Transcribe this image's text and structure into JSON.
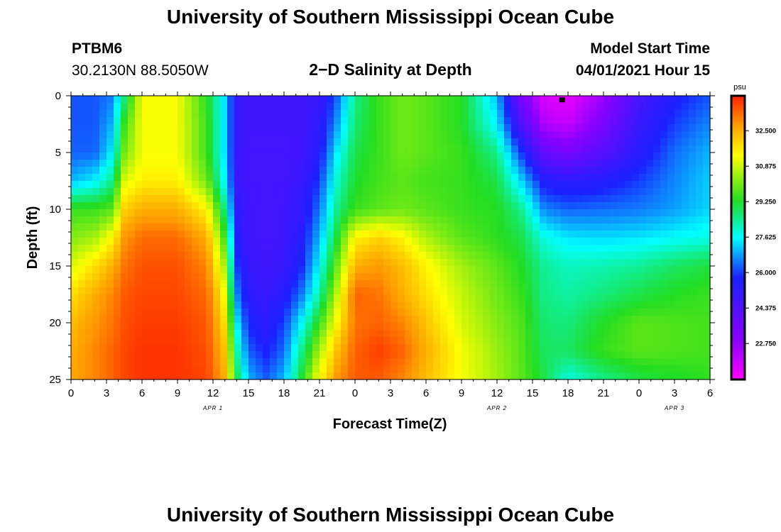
{
  "page": {
    "title_top": "University of Southern Mississippi Ocean Cube",
    "title_bottom": "University of Southern Mississippi Ocean Cube",
    "station_id": "PTBM6",
    "station_coords": "30.2130N  88.5050W",
    "chart_title": "2−D Salinity at Depth",
    "model_start_label": "Model Start Time",
    "model_start_value": "04/01/2021 Hour 15"
  },
  "chart_data": {
    "type": "heatmap",
    "title": "2−D Salinity at Depth",
    "xlabel": "Forecast Time(Z)",
    "ylabel": "Depth (ft)",
    "x_tick_labels": [
      "0",
      "3",
      "6",
      "9",
      "12",
      "15",
      "18",
      "21",
      "0",
      "3",
      "6",
      "9",
      "12",
      "15",
      "18",
      "21",
      "0",
      "3",
      "6"
    ],
    "x_range_hours": [
      0,
      54
    ],
    "date_labels": [
      {
        "text": "APR 1",
        "at_hour": 12
      },
      {
        "text": "APR 2",
        "at_hour": 36
      },
      {
        "text": "APR 3",
        "at_hour": 51
      }
    ],
    "y_ticks": [
      0,
      5,
      10,
      15,
      20,
      25
    ],
    "ylim": [
      0,
      25
    ],
    "y_direction": "depth increases downward",
    "colorbar": {
      "unit": "psu",
      "tick_values": [
        32.5,
        30.875,
        29.25,
        27.625,
        26.0,
        24.375,
        22.75
      ],
      "tick_labels": [
        "32.500",
        "30.875",
        "29.250",
        "27.625",
        "26.000",
        "24.375",
        "22.750"
      ],
      "range": [
        21.1,
        34.1
      ],
      "colors_low_to_high": [
        "#ff00ff",
        "#8800ff",
        "#1a22ff",
        "#00ffff",
        "#22dd22",
        "#ffff00",
        "#ff9900",
        "#ff2200"
      ]
    },
    "marker": {
      "hour": 41.5,
      "depth": 0.2
    },
    "grid": {
      "hours": [
        0,
        2,
        3.5,
        4.5,
        6,
        9,
        11.5,
        13,
        14,
        15,
        16.5,
        18,
        19.5,
        21,
        22.5,
        24,
        26,
        28,
        30,
        33,
        36,
        38,
        40,
        42,
        45,
        48,
        51,
        54
      ],
      "depths": [
        0,
        2.5,
        5,
        7.5,
        10,
        12.5,
        15,
        17.5,
        20,
        22.5,
        25
      ],
      "salinity_psu": [
        [
          26.2,
          26.2,
          26.5,
          28.5,
          31.3,
          31.3,
          29.3,
          27.3,
          25.0,
          24.8,
          24.8,
          24.8,
          24.8,
          25.0,
          26.3,
          28.5,
          29.5,
          30.0,
          29.8,
          29.3,
          27.0,
          23.3,
          21.6,
          21.4,
          22.6,
          24.6,
          25.6,
          26.2
        ],
        [
          26.2,
          26.2,
          27.0,
          29.5,
          31.3,
          31.3,
          29.5,
          27.3,
          25.0,
          24.8,
          24.8,
          24.8,
          24.8,
          25.2,
          26.8,
          28.7,
          29.5,
          30.0,
          29.8,
          29.3,
          27.5,
          24.5,
          22.3,
          22.0,
          23.3,
          25.0,
          26.0,
          26.6
        ],
        [
          26.3,
          26.3,
          27.5,
          30.0,
          31.3,
          31.3,
          29.5,
          27.3,
          25.0,
          24.7,
          24.7,
          24.7,
          24.8,
          25.5,
          27.5,
          29.0,
          29.5,
          30.0,
          29.8,
          29.5,
          28.5,
          26.0,
          23.8,
          23.3,
          24.2,
          25.4,
          26.4,
          27.0
        ],
        [
          27.0,
          27.5,
          28.5,
          31.0,
          31.6,
          31.6,
          30.0,
          27.5,
          25.0,
          24.7,
          24.7,
          24.7,
          25.0,
          26.0,
          28.0,
          29.2,
          29.6,
          29.8,
          29.6,
          29.5,
          29.0,
          27.3,
          25.5,
          25.3,
          25.5,
          26.0,
          26.6,
          27.2
        ],
        [
          29.5,
          29.5,
          29.8,
          32.0,
          32.5,
          32.5,
          31.5,
          28.5,
          25.3,
          24.8,
          24.7,
          24.8,
          25.2,
          26.5,
          28.5,
          29.5,
          29.8,
          30.0,
          29.8,
          29.5,
          29.3,
          28.5,
          26.6,
          26.3,
          26.4,
          26.5,
          26.8,
          27.3
        ],
        [
          30.2,
          30.5,
          31.5,
          32.8,
          33.3,
          33.3,
          32.5,
          29.5,
          25.6,
          24.8,
          24.7,
          24.8,
          25.5,
          27.0,
          29.2,
          31.5,
          32.0,
          31.5,
          30.6,
          29.8,
          29.4,
          29.0,
          27.8,
          27.4,
          27.3,
          27.4,
          27.6,
          27.8
        ],
        [
          31.0,
          31.8,
          32.5,
          33.2,
          33.6,
          33.6,
          33.0,
          30.5,
          26.0,
          25.0,
          24.8,
          25.0,
          25.8,
          27.6,
          30.0,
          32.5,
          32.8,
          32.3,
          31.5,
          30.5,
          29.8,
          29.3,
          28.4,
          28.1,
          28.2,
          28.4,
          28.8,
          29.1
        ],
        [
          31.8,
          32.5,
          33.0,
          33.5,
          33.7,
          33.7,
          33.3,
          31.3,
          26.6,
          25.3,
          25.0,
          25.4,
          26.5,
          28.3,
          30.8,
          33.4,
          33.2,
          32.5,
          31.8,
          30.8,
          30.0,
          29.5,
          28.5,
          28.3,
          28.6,
          29.0,
          29.3,
          29.5
        ],
        [
          32.3,
          32.8,
          33.2,
          33.6,
          33.8,
          33.8,
          33.5,
          31.8,
          27.5,
          25.7,
          25.3,
          26.0,
          27.6,
          29.5,
          31.5,
          33.2,
          33.4,
          33.0,
          32.2,
          31.0,
          30.2,
          29.7,
          28.7,
          28.6,
          29.3,
          29.8,
          29.7,
          29.6
        ],
        [
          32.5,
          33.0,
          33.4,
          33.7,
          33.9,
          33.9,
          33.6,
          32.2,
          28.3,
          26.3,
          25.7,
          26.4,
          28.5,
          30.6,
          32.3,
          33.4,
          33.8,
          33.4,
          32.5,
          31.3,
          30.4,
          29.8,
          28.8,
          28.8,
          29.5,
          29.8,
          29.7,
          29.6
        ],
        [
          32.6,
          33.0,
          33.4,
          33.7,
          33.9,
          33.9,
          33.7,
          32.5,
          29.0,
          27.0,
          26.3,
          27.0,
          29.2,
          31.5,
          32.8,
          33.5,
          33.5,
          33.0,
          32.3,
          31.3,
          30.5,
          29.8,
          29.0,
          27.8,
          28.5,
          29.0,
          29.2,
          29.4
        ]
      ]
    }
  }
}
